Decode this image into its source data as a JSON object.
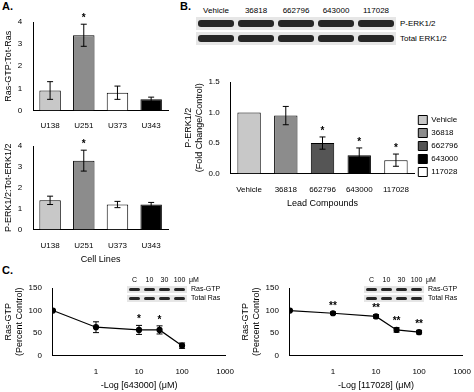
{
  "panel_labels": [
    "A.",
    "B.",
    "C."
  ],
  "chart_data": [
    {
      "type": "bar",
      "categories": [
        "U138",
        "U251",
        "U373",
        "U343"
      ],
      "values": [
        0.9,
        3.4,
        0.8,
        0.5
      ],
      "errors": [
        0.4,
        0.5,
        0.3,
        0.1
      ],
      "significance": [
        null,
        "*",
        null,
        null
      ],
      "colors": [
        "#c8c8c8",
        "#8c8c8c",
        "#ffffff",
        "#000000"
      ],
      "y_label": "Ras-GTP:Tot-Ras",
      "ylim": [
        0,
        4
      ],
      "yticks": [
        0,
        1,
        2,
        3,
        4
      ],
      "grid": false
    },
    {
      "type": "bar",
      "categories": [
        "U138",
        "U251",
        "U373",
        "U343"
      ],
      "values": [
        1.4,
        3.3,
        1.2,
        1.2
      ],
      "errors": [
        0.2,
        0.5,
        0.15,
        0.1
      ],
      "significance": [
        null,
        "*",
        null,
        null
      ],
      "colors": [
        "#c8c8c8",
        "#8c8c8c",
        "#ffffff",
        "#000000"
      ],
      "x_label": "Cell Lines",
      "y_label": "P-ERK1/2:Tot-ERK1/2",
      "ylim": [
        0,
        4
      ],
      "yticks": [
        0,
        1,
        2,
        3,
        4
      ],
      "grid": false
    },
    {
      "type": "bar",
      "categories": [
        "Vehicle",
        "36818",
        "662796",
        "643000",
        "117028"
      ],
      "values": [
        1.0,
        0.95,
        0.5,
        0.3,
        0.22
      ],
      "errors": [
        null,
        0.15,
        0.1,
        0.12,
        0.1
      ],
      "significance": [
        null,
        null,
        "*",
        "*",
        "*"
      ],
      "colors": [
        "#c8c8c8",
        "#8c8c8c",
        "#555555",
        "#000000",
        "#ffffff"
      ],
      "x_label": "Lead Compounds",
      "y_label": [
        "P-ERK1/2",
        "(Fold Change/Control)"
      ],
      "ylim": [
        0,
        1.5
      ],
      "yticks": [
        {
          "value": 0,
          "label": "0.0"
        },
        {
          "value": 0.5,
          "label": "0.5"
        },
        {
          "value": 1,
          "label": "1.0"
        },
        {
          "value": 1.5,
          "label": "1.5"
        }
      ],
      "grid": false,
      "legend": "right",
      "blot": {
        "lanes": [
          "Vehicle",
          "36818",
          "662796",
          "643000",
          "117028"
        ],
        "rows": [
          "P-ERK1/2",
          "Total ERK1/2"
        ]
      }
    },
    {
      "type": "line",
      "x": [
        0.1,
        1,
        10,
        30,
        100
      ],
      "values": [
        100,
        63,
        57,
        57,
        22
      ],
      "errors": [
        null,
        12,
        10,
        9,
        6
      ],
      "significance": [
        null,
        null,
        "*",
        "*",
        null
      ],
      "log": "x",
      "xlim": [
        0.1,
        1000
      ],
      "xticks": [
        1,
        10,
        100,
        1000
      ],
      "ylim": [
        0,
        150
      ],
      "yticks": [
        0,
        50,
        100,
        150
      ],
      "grid": false,
      "x_label": "-Log [643000] (μM)",
      "y_label": [
        "Ras-GTP",
        "(Percent Control)"
      ],
      "color": "#000000",
      "marker": "circle",
      "line_style": "solid",
      "inset": {
        "lanes": [
          "C",
          "10",
          "30",
          "100"
        ],
        "unit": "μM",
        "rows": [
          "Ras-GTP",
          "Total Ras"
        ]
      }
    },
    {
      "type": "line",
      "x": [
        0.1,
        1,
        10,
        30,
        100
      ],
      "values": [
        100,
        94,
        87,
        57,
        52
      ],
      "errors": [
        null,
        3,
        4,
        5,
        4
      ],
      "significance": [
        null,
        "**",
        "**",
        "**",
        "**"
      ],
      "log": "x",
      "xlim": [
        0.1,
        1000
      ],
      "xticks": [
        1,
        10,
        100,
        1000
      ],
      "ylim": [
        0,
        150
      ],
      "yticks": [
        0,
        50,
        100,
        150
      ],
      "grid": false,
      "x_label": "-Log [117028] (μM)",
      "y_label": [
        "Ras-GTP",
        "(Percent Control)"
      ],
      "color": "#000000",
      "marker": "circle",
      "line_style": "solid",
      "inset": {
        "lanes": [
          "C",
          "10",
          "30",
          "100"
        ],
        "unit": "μM",
        "rows": [
          "Ras-GTP",
          "Total Ras"
        ]
      }
    }
  ]
}
